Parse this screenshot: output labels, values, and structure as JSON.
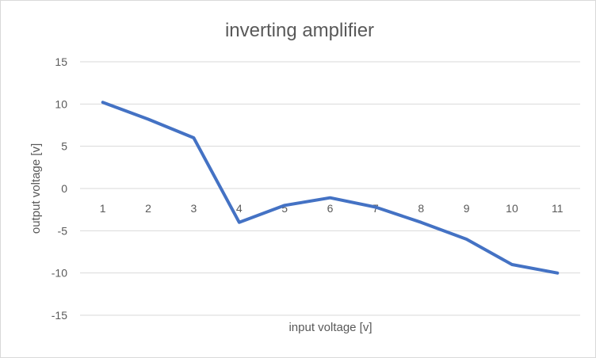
{
  "chart_data": {
    "type": "line",
    "title": "inverting amplifier",
    "xlabel": "input voltage [v]",
    "ylabel": "output voltage [v]",
    "categories": [
      "1",
      "2",
      "3",
      "4",
      "5",
      "6",
      "7",
      "8",
      "9",
      "10",
      "11"
    ],
    "series": [
      {
        "values": [
          10.2,
          8.2,
          6,
          -4,
          -2,
          -1.1,
          -2.2,
          -4,
          -6,
          -9,
          -10
        ]
      }
    ],
    "ylim": [
      -15,
      15
    ],
    "yticks": [
      15,
      10,
      5,
      0,
      -5,
      -10,
      -15
    ],
    "grid": true,
    "legend": "none",
    "colors": {
      "series": "#4472c4",
      "grid": "#d9d9d9",
      "text": "#595959"
    }
  }
}
